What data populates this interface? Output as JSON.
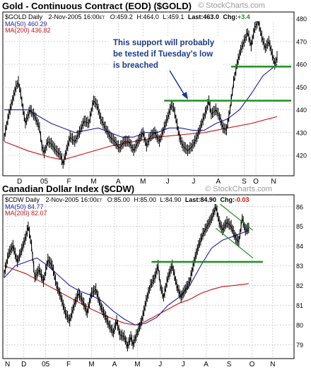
{
  "colors": {
    "price": "#000000",
    "ma50": "#1c1caa",
    "ma200": "#cc1111",
    "support": "#1f8f1f",
    "annotation_text": "#1a3a8a",
    "arrow": "#1a3a8a",
    "frame": "#000000",
    "watermark": "#9a9a9a"
  },
  "chart_data": [
    {
      "type": "line",
      "id": "gold",
      "title": "Gold - Continuous Contract (EOD) ($GOLD)",
      "watermark": "© StockCharts.com",
      "header": {
        "symbol": "$GOLD Daily",
        "date": "2-Nov-2005 16:00",
        "date_suffix": "ET",
        "open": "O:459.2",
        "high": "H:464.0",
        "low": "L:459.1",
        "last": "Last:463.0",
        "chg_label": "Chg:",
        "chg_value": "+3.4"
      },
      "legend": [
        {
          "label": "MA(50) 460.29",
          "color": "#1c1caa"
        },
        {
          "label": "MA(200) 436.82",
          "color": "#cc1111"
        }
      ],
      "annotation": {
        "lines": [
          "This support will probably",
          "be tested if Tuesday's low",
          "is breached"
        ]
      },
      "x_tick_labels": [
        "D",
        "05",
        "F",
        "M",
        "A",
        "M",
        "J",
        "J",
        "A",
        "S",
        "O",
        "N"
      ],
      "x_range": [
        0,
        232
      ],
      "x_ticks": [
        13,
        34,
        55,
        76,
        97,
        118,
        139,
        161,
        182,
        204,
        214,
        229
      ],
      "y_ticks": [
        420,
        430,
        440,
        450,
        460,
        470,
        480
      ],
      "ylim": [
        411,
        483
      ],
      "closes": [
        [
          0,
          428
        ],
        [
          4,
          438
        ],
        [
          8,
          446
        ],
        [
          10,
          450
        ],
        [
          12,
          452
        ],
        [
          14,
          447
        ],
        [
          16,
          440
        ],
        [
          18,
          434
        ],
        [
          22,
          440
        ],
        [
          26,
          437
        ],
        [
          30,
          432
        ],
        [
          32,
          424
        ],
        [
          34,
          421
        ],
        [
          37,
          426
        ],
        [
          40,
          425
        ],
        [
          44,
          422
        ],
        [
          48,
          420
        ],
        [
          50,
          416
        ],
        [
          52,
          420
        ],
        [
          56,
          428
        ],
        [
          60,
          426
        ],
        [
          64,
          430
        ],
        [
          68,
          435
        ],
        [
          72,
          434
        ],
        [
          76,
          444
        ],
        [
          79,
          442
        ],
        [
          82,
          436
        ],
        [
          86,
          432
        ],
        [
          90,
          428
        ],
        [
          94,
          426
        ],
        [
          98,
          423
        ],
        [
          102,
          426
        ],
        [
          106,
          426
        ],
        [
          110,
          422
        ],
        [
          114,
          426
        ],
        [
          118,
          430
        ],
        [
          121,
          424
        ],
        [
          124,
          428
        ],
        [
          128,
          430
        ],
        [
          132,
          426
        ],
        [
          136,
          432
        ],
        [
          140,
          438
        ],
        [
          142,
          442
        ],
        [
          144,
          441
        ],
        [
          146,
          436
        ],
        [
          149,
          428
        ],
        [
          152,
          424
        ],
        [
          156,
          422
        ],
        [
          160,
          424
        ],
        [
          164,
          428
        ],
        [
          168,
          434
        ],
        [
          172,
          440
        ],
        [
          174,
          444
        ],
        [
          176,
          438
        ],
        [
          180,
          440
        ],
        [
          183,
          437
        ],
        [
          186,
          432
        ],
        [
          189,
          431
        ],
        [
          192,
          440
        ],
        [
          195,
          452
        ],
        [
          198,
          460
        ],
        [
          201,
          466
        ],
        [
          204,
          470
        ],
        [
          207,
          474
        ],
        [
          210,
          468
        ],
        [
          213,
          476
        ],
        [
          216,
          479
        ],
        [
          219,
          472
        ],
        [
          222,
          467
        ],
        [
          225,
          470
        ],
        [
          228,
          464
        ],
        [
          230,
          460
        ],
        [
          232,
          463
        ]
      ],
      "ma50": [
        [
          0,
          440
        ],
        [
          10,
          440
        ],
        [
          20,
          440
        ],
        [
          30,
          437
        ],
        [
          40,
          434
        ],
        [
          50,
          432
        ],
        [
          60,
          430
        ],
        [
          70,
          431
        ],
        [
          80,
          432
        ],
        [
          90,
          430
        ],
        [
          100,
          428
        ],
        [
          110,
          428
        ],
        [
          120,
          430
        ],
        [
          130,
          430
        ],
        [
          140,
          432
        ],
        [
          150,
          432
        ],
        [
          160,
          431
        ],
        [
          170,
          431
        ],
        [
          180,
          434
        ],
        [
          190,
          436
        ],
        [
          200,
          440
        ],
        [
          210,
          447
        ],
        [
          220,
          455
        ],
        [
          232,
          460
        ]
      ],
      "ma200": [
        [
          0,
          426
        ],
        [
          20,
          422
        ],
        [
          40,
          419
        ],
        [
          50,
          418
        ],
        [
          70,
          421
        ],
        [
          90,
          424
        ],
        [
          110,
          426
        ],
        [
          130,
          428
        ],
        [
          150,
          429
        ],
        [
          170,
          430
        ],
        [
          190,
          432
        ],
        [
          210,
          434
        ],
        [
          232,
          437
        ]
      ],
      "support": [
        {
          "x1": 193,
          "x2": 232,
          "y": 459
        },
        {
          "x1": 136,
          "x2": 232,
          "y": 444
        }
      ]
    },
    {
      "type": "line",
      "id": "cdw",
      "title": "Canadian Dollar Index ($CDW)",
      "watermark": "© StockCharts.com",
      "header": {
        "symbol": "$CDW Daily",
        "date": "2-Nov-2005 16:00",
        "date_suffix": "ET",
        "open": "O:85.00",
        "high": "H:85.00",
        "low": "L:84.90",
        "last": "Last:84.90",
        "chg_label": "Chg:",
        "chg_value": "-0.03"
      },
      "legend": [
        {
          "label": "MA(50) 84.77",
          "color": "#1c1caa"
        },
        {
          "label": "MA(200) 82.07",
          "color": "#cc1111"
        }
      ],
      "x_tick_labels": [
        "N",
        "D",
        "05",
        "F",
        "M",
        "A",
        "M",
        "J",
        "J",
        "A",
        "S",
        "O",
        "N"
      ],
      "x_range": [
        0,
        250
      ],
      "x_ticks": [
        3,
        18,
        38,
        59,
        80,
        101,
        122,
        143,
        164,
        185,
        206,
        227,
        246
      ],
      "y_ticks": [
        79,
        80,
        81,
        82,
        83,
        84,
        85,
        86
      ],
      "ylim": [
        78.3,
        86.6
      ],
      "closes": [
        [
          0,
          82.6
        ],
        [
          4,
          83.6
        ],
        [
          8,
          84.0
        ],
        [
          12,
          83.2
        ],
        [
          16,
          83.8
        ],
        [
          20,
          84.5
        ],
        [
          22,
          85.0
        ],
        [
          25,
          84.0
        ],
        [
          28,
          82.4
        ],
        [
          32,
          82.8
        ],
        [
          36,
          82.2
        ],
        [
          40,
          83.3
        ],
        [
          44,
          83.0
        ],
        [
          48,
          82.0
        ],
        [
          52,
          81.4
        ],
        [
          56,
          80.6
        ],
        [
          60,
          80.2
        ],
        [
          64,
          81.0
        ],
        [
          68,
          81.6
        ],
        [
          72,
          81.2
        ],
        [
          76,
          80.6
        ],
        [
          80,
          81.6
        ],
        [
          84,
          81.8
        ],
        [
          88,
          81.0
        ],
        [
          92,
          80.5
        ],
        [
          96,
          80.0
        ],
        [
          100,
          79.6
        ],
        [
          103,
          80.2
        ],
        [
          106,
          79.5
        ],
        [
          110,
          79.4
        ],
        [
          113,
          78.9
        ],
        [
          116,
          79.4
        ],
        [
          118,
          79.0
        ],
        [
          122,
          79.6
        ],
        [
          126,
          80.2
        ],
        [
          130,
          81.2
        ],
        [
          134,
          82.0
        ],
        [
          138,
          82.4
        ],
        [
          141,
          83.0
        ],
        [
          143,
          82.0
        ],
        [
          146,
          81.4
        ],
        [
          150,
          82.4
        ],
        [
          154,
          83.0
        ],
        [
          158,
          82.0
        ],
        [
          162,
          81.4
        ],
        [
          166,
          81.8
        ],
        [
          170,
          82.2
        ],
        [
          174,
          83.2
        ],
        [
          178,
          84.0
        ],
        [
          182,
          84.6
        ],
        [
          186,
          85.0
        ],
        [
          190,
          85.4
        ],
        [
          194,
          86.0
        ],
        [
          197,
          85.2
        ],
        [
          200,
          84.8
        ],
        [
          204,
          85.2
        ],
        [
          208,
          85.0
        ],
        [
          212,
          84.4
        ],
        [
          215,
          84.2
        ],
        [
          218,
          85.4
        ],
        [
          221,
          84.8
        ],
        [
          224,
          84.9
        ]
      ],
      "ma50": [
        [
          0,
          82.4
        ],
        [
          10,
          83.0
        ],
        [
          20,
          83.2
        ],
        [
          30,
          83.4
        ],
        [
          40,
          83.0
        ],
        [
          50,
          82.5
        ],
        [
          60,
          82.0
        ],
        [
          70,
          81.7
        ],
        [
          80,
          81.5
        ],
        [
          90,
          81.2
        ],
        [
          100,
          80.7
        ],
        [
          110,
          80.3
        ],
        [
          120,
          80.0
        ],
        [
          130,
          80.1
        ],
        [
          140,
          80.4
        ],
        [
          150,
          81.0
        ],
        [
          160,
          81.4
        ],
        [
          170,
          82.0
        ],
        [
          180,
          83.0
        ],
        [
          190,
          83.9
        ],
        [
          200,
          84.3
        ],
        [
          210,
          84.5
        ],
        [
          224,
          84.8
        ]
      ],
      "ma200": [
        [
          0,
          83.0
        ],
        [
          20,
          82.6
        ],
        [
          40,
          82.0
        ],
        [
          60,
          81.4
        ],
        [
          80,
          80.8
        ],
        [
          100,
          80.3
        ],
        [
          110,
          80.1
        ],
        [
          120,
          80.0
        ],
        [
          130,
          80.2
        ],
        [
          140,
          80.5
        ],
        [
          150,
          80.8
        ],
        [
          160,
          81.1
        ],
        [
          170,
          81.3
        ],
        [
          180,
          81.6
        ],
        [
          190,
          81.8
        ],
        [
          200,
          81.95
        ],
        [
          210,
          82.0
        ],
        [
          224,
          82.1
        ]
      ],
      "support": [
        {
          "x1": 135,
          "x2": 224,
          "y": 83.2
        }
      ],
      "channel": [
        {
          "x1": 194,
          "x2": 224,
          "y1": 86.3,
          "y2": 84.8
        },
        {
          "x1": 194,
          "x2": 224,
          "y1": 84.9,
          "y2": 83.4
        }
      ]
    }
  ]
}
